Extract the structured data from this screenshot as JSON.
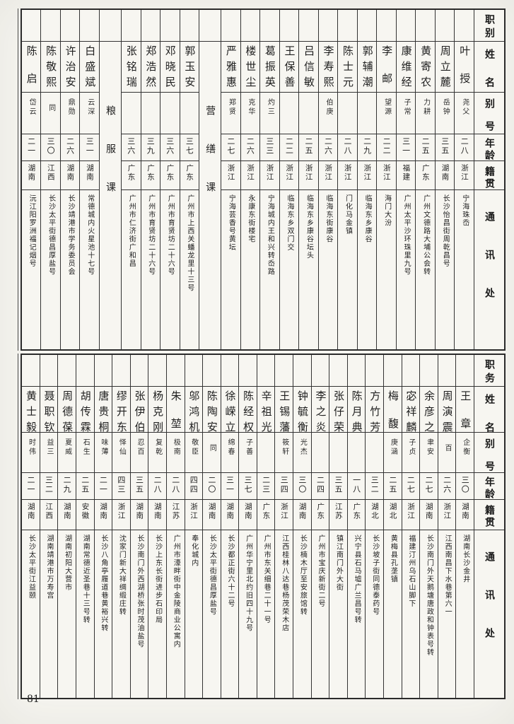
{
  "page_number": "81",
  "tables": [
    {
      "id": "top",
      "headers": {
        "job": "职别",
        "name": "姓名",
        "alias": "别号",
        "age": "年龄",
        "origin": "籍贯",
        "address": "通讯处"
      },
      "columns": [
        {
          "name": "叶授",
          "alias": "尧父",
          "age": "二八",
          "origin": "浙江",
          "address": "宁海珠岙"
        },
        {
          "name": "周立麓",
          "alias": "岳钟",
          "age": "三五",
          "origin": "湖南",
          "address": "长沙怡昌街周乾昌号"
        },
        {
          "name": "黄寄农",
          "alias": "力耕",
          "age": "二五",
          "origin": "广东",
          "address": "广州文德路大埔公会转"
        },
        {
          "name": "康维经",
          "alias": "子常",
          "age": "三一",
          "origin": "福建",
          "address": "广州太平沙环珠里九号"
        },
        {
          "name": "李邮",
          "alias": "望源",
          "age": "二二",
          "origin": "浙江",
          "address": "海门大汾"
        },
        {
          "name": "郭辅潮",
          "age": "二九",
          "origin": "浙江",
          "address": "临海东乡康谷"
        },
        {
          "name": "陈士元",
          "age": "二八",
          "origin": "浙江",
          "address": "门化马金镇"
        },
        {
          "name": "李寿熙",
          "alias": "伯庚",
          "age": "二六",
          "origin": "浙江",
          "address": "临海东街康谷"
        },
        {
          "name": "吕信敏",
          "age": "二五",
          "origin": "浙江",
          "address": "临海东乡康谷坛头"
        },
        {
          "name": "王保善",
          "age": "二二",
          "origin": "浙江",
          "address": "临海东乡双门交"
        },
        {
          "name": "葛振英",
          "alias": "灼三",
          "age": "三三",
          "origin": "浙江",
          "address": "宁海城内王和兴转岙路"
        },
        {
          "name": "楼世尘",
          "alias": "克华",
          "age": "二六",
          "origin": "浙江",
          "address": "永康东街楼宅"
        },
        {
          "name": "严雅惠",
          "alias": "郑贤",
          "age": "二七",
          "origin": "浙江",
          "address": "宁海芸香号黄坛"
        },
        {
          "section": "营缮课"
        },
        {
          "name": "郭玉安",
          "age": "三七",
          "origin": "广东",
          "address": "广州市上西关蟠龙里十三号"
        },
        {
          "name": "邓晓民",
          "age": "三六",
          "origin": "广东",
          "address": "广州市育贤坊二十六号"
        },
        {
          "name": "郑浩然",
          "age": "三九",
          "origin": "广东",
          "address": "广州市育贤坊二十六号"
        },
        {
          "name": "张铭瑞",
          "age": "三六",
          "origin": "广东",
          "address": "广州市仁济街广和昌"
        },
        {
          "section": "粮服课"
        },
        {
          "name": "白盛斌",
          "alias": "云深",
          "age": "三一",
          "origin": "湖南",
          "address": "常德城内火星池十七号"
        },
        {
          "name": "许治安",
          "alias": "鼎勋",
          "age": "二六",
          "origin": "湖南",
          "address": "长沙靖港市学务委员会"
        },
        {
          "name": "陈敬熙",
          "alias": "同",
          "age": "三〇",
          "origin": "江西",
          "address": "长沙太平街德昌厚盐号"
        },
        {
          "name": "陈启",
          "alias": "岱云",
          "age": "二一",
          "origin": "湖南",
          "address": "沅江阳罗洲福记烟号"
        }
      ]
    },
    {
      "id": "bottom",
      "headers": {
        "job": "职务",
        "name": "姓名",
        "alias": "别号",
        "age": "年龄",
        "origin": "籍贯",
        "address": "通讯处"
      },
      "columns": [
        {
          "name": "王章",
          "alias": "企衡",
          "age": "三〇",
          "origin": "湖南",
          "address": "湖南长沙金井"
        },
        {
          "name": "周演震",
          "alias": "百",
          "age": "二六",
          "origin": "浙江",
          "address": "江西南昌下水巷第六一"
        },
        {
          "name": "余彦之",
          "alias": "聿安",
          "age": "二七",
          "origin": "湖南",
          "address": "长沙南门外天鹅塘唐政和钟表号转"
        },
        {
          "name": "宓祥麟",
          "alias": "子贞",
          "age": "二七",
          "origin": "浙江",
          "address": "福建汀州乌石山脚下"
        },
        {
          "name": "梅馥",
          "alias": "庚涵",
          "age": "二五",
          "origin": "湖北",
          "address": "黄梅县孔垄镇"
        },
        {
          "name": "方竹芳",
          "age": "三二",
          "origin": "湖北",
          "address": "长沙坡子街同德泰药号"
        },
        {
          "name": "陈月典",
          "age": "一八",
          "origin": "广东",
          "address": "兴宁县石马墟广兰昌号转"
        },
        {
          "name": "张仔荣",
          "age": "三五",
          "origin": "江苏",
          "address": "镇江南门外大街"
        },
        {
          "name": "李之炎",
          "age": "二四",
          "origin": "广东",
          "address": "广州市宝庆新街二号"
        },
        {
          "name": "钟毓衡",
          "alias": "光杰",
          "age": "三〇",
          "origin": "湖南",
          "address": "长沙楠木厅至安旅馆转"
        },
        {
          "name": "王锡藩",
          "alias": "筱轩",
          "age": "三四",
          "origin": "浙江",
          "address": "江西桂林八达巷杨茂荣木店"
        },
        {
          "name": "辛祖光",
          "age": "二三",
          "origin": "广东",
          "address": "广州市东关细巷二十一号"
        },
        {
          "name": "陈经权",
          "alias": "子善",
          "age": "三七",
          "origin": "湖南",
          "address": "广州华宁里北约旧四十九号"
        },
        {
          "name": "徐嵘立",
          "alias": "绵春",
          "age": "三一",
          "origin": "湖南",
          "address": "长沙都正街六十二号"
        },
        {
          "name": "陈陶安",
          "alias": "同",
          "age": "二〇",
          "origin": "湖南",
          "address": "长沙太平街德昌厚盐号"
        },
        {
          "name": "邬鸿机",
          "alias": "敬臣",
          "age": "四四",
          "origin": "浙江",
          "address": "奉化城内"
        },
        {
          "name": "朱堃",
          "alias": "极南",
          "age": "二八",
          "origin": "江苏",
          "address": "广州市濠畔街中金陵商业公寓内"
        },
        {
          "name": "杨克刚",
          "alias": "复乾",
          "age": "二八",
          "origin": "湖南",
          "address": "长沙上东长街进步石印局"
        },
        {
          "name": "张伊伯",
          "alias": "忍百",
          "age": "三五",
          "origin": "湖南",
          "address": "长沙南门外西湖桥张时茂油盐号"
        },
        {
          "name": "缪开东",
          "alias": "怿仙",
          "age": "四三",
          "origin": "浙江",
          "address": "沈家门新大祥绸缎庄转"
        },
        {
          "name": "唐贵桐",
          "alias": "味薄",
          "age": "二一",
          "origin": "湖南",
          "address": "长沙八角亭履道巷黄裕兴转"
        },
        {
          "name": "胡传霖",
          "alias": "石生",
          "age": "二五",
          "origin": "安徽",
          "address": "湖南常德近圣巷十三号转"
        },
        {
          "name": "周德葆",
          "alias": "夏威",
          "age": "二九",
          "origin": "湖南",
          "address": "湖南初阳大营市"
        },
        {
          "name": "聂职钦",
          "alias": "益三",
          "age": "三二",
          "origin": "江西",
          "address": "湖南靖港市万寿宫"
        },
        {
          "name": "黄士毅",
          "alias": "时伟",
          "age": "二一",
          "origin": "湖南",
          "address": "长沙太平街江益颐"
        }
      ]
    }
  ]
}
